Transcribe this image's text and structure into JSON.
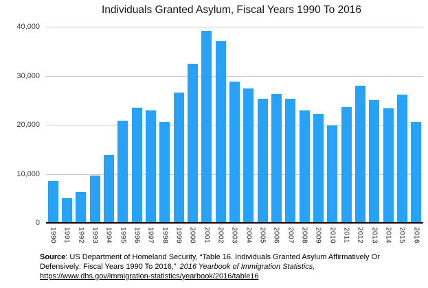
{
  "chart_data": {
    "type": "bar",
    "title": "Individuals Granted Asylum, Fiscal Years 1990 To 2016",
    "categories": [
      "1990",
      "1991",
      "1992",
      "1993",
      "1994",
      "1995",
      "1996",
      "1997",
      "1998",
      "1999",
      "2000",
      "2001",
      "2002",
      "2003",
      "2004",
      "2005",
      "2006",
      "2007",
      "2008",
      "2009",
      "2010",
      "2011",
      "2012",
      "2013",
      "2014",
      "2015",
      "2016"
    ],
    "values": [
      8500,
      5000,
      6300,
      9600,
      13800,
      20800,
      23500,
      23000,
      20600,
      26600,
      32500,
      39200,
      37000,
      28800,
      27400,
      25300,
      26300,
      25300,
      23000,
      22200,
      19900,
      23600,
      28000,
      25000,
      23400,
      26100,
      20500
    ],
    "xlabel": "",
    "ylabel": "",
    "ylim": [
      0,
      40000
    ],
    "ytick_labels": [
      "40,000",
      "30,000",
      "20,000",
      "10,000",
      "0"
    ],
    "grid": true,
    "legend": false,
    "colors": {
      "bar": "#27A2F4",
      "gridline": "#cccccc",
      "axis": "#000000"
    }
  },
  "footer": {
    "source_label": "Source",
    "source_text": ": US Department of Homeland Security, “Table 16. Individuals Granted Asylum Affirmatively Or Defensively: Fiscal Years 1990 To 2016,” ",
    "citation_italic": "2016 Yearbook of Immigration Statistics,",
    "link_text": "https://www.dhs.gov/immigration-statistics/yearbook/2016/table16"
  }
}
